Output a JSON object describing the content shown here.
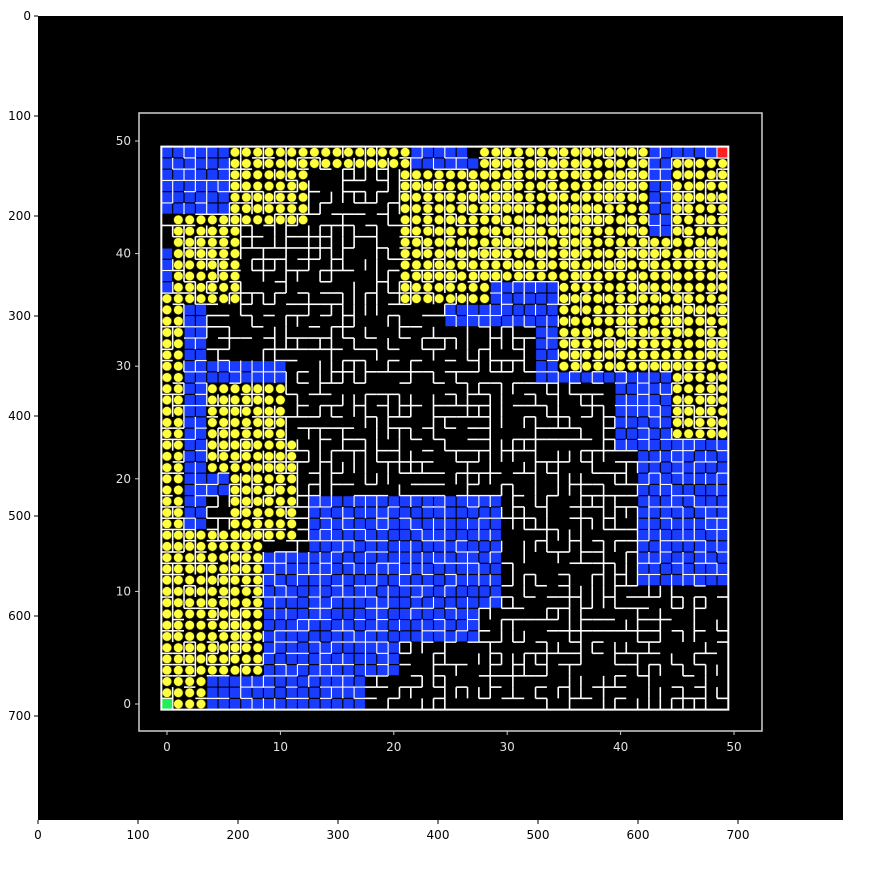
{
  "chart_data": [
    {
      "type": "heatmap",
      "role": "outer-image-axes",
      "title": "",
      "xlabel": "",
      "ylabel": "",
      "xlim": [
        0,
        805
      ],
      "ylim": [
        805,
        0
      ],
      "xticks": [
        0,
        100,
        200,
        300,
        400,
        500,
        600,
        700
      ],
      "yticks": [
        0,
        100,
        200,
        300,
        400,
        500,
        600,
        700
      ],
      "background": "#000000"
    },
    {
      "type": "scatter",
      "role": "maze-search-plot",
      "title": "",
      "xlabel": "",
      "ylabel": "",
      "xlim": [
        -2.5,
        52.5
      ],
      "ylim": [
        -2.5,
        52.5
      ],
      "xticks": [
        0,
        10,
        20,
        30,
        40,
        50
      ],
      "yticks": [
        0,
        10,
        20,
        30,
        40,
        50
      ],
      "grid_size": 50,
      "start": [
        0,
        0
      ],
      "goal": [
        49,
        49
      ],
      "colors": {
        "background": "#000000",
        "frame": "#d0d0d0",
        "walls": "#ffffff",
        "visited": "#1a3cff",
        "frontier": "#ffff3c",
        "start": "#22ee55",
        "goal": "#ff2020"
      },
      "visited_regions": [
        {
          "x0": 0,
          "x1": 9,
          "y0": 44,
          "y1": 49
        },
        {
          "x0": 9,
          "x1": 11,
          "y0": 49,
          "y1": 49
        },
        {
          "x0": 11,
          "x1": 26,
          "y0": 49,
          "y1": 49
        },
        {
          "x0": 21,
          "x1": 31,
          "y0": 44,
          "y1": 48
        },
        {
          "x0": 25,
          "x1": 35,
          "y0": 34,
          "y1": 43
        },
        {
          "x0": 33,
          "x1": 46,
          "y0": 29,
          "y1": 37
        },
        {
          "x0": 41,
          "x1": 49,
          "y0": 40,
          "y1": 49
        },
        {
          "x0": 40,
          "x1": 46,
          "y0": 23,
          "y1": 30
        },
        {
          "x0": 42,
          "x1": 49,
          "y0": 11,
          "y1": 24
        },
        {
          "x0": 0,
          "x1": 3,
          "y0": 2,
          "y1": 40
        },
        {
          "x0": 4,
          "x1": 10,
          "y0": 27,
          "y1": 30
        },
        {
          "x0": 3,
          "x1": 6,
          "y0": 19,
          "y1": 26
        },
        {
          "x0": 0,
          "x1": 17,
          "y0": 0,
          "y1": 4
        },
        {
          "x0": 9,
          "x1": 20,
          "y0": 3,
          "y1": 13
        },
        {
          "x0": 13,
          "x1": 29,
          "y0": 9,
          "y1": 18
        },
        {
          "x0": 20,
          "x1": 27,
          "y0": 6,
          "y1": 11
        }
      ],
      "frontier_regions": [
        {
          "x0": 0,
          "x1": 1,
          "y0": 0,
          "y1": 36
        },
        {
          "x0": 1,
          "x1": 6,
          "y0": 36,
          "y1": 43
        },
        {
          "x0": 6,
          "x1": 12,
          "y0": 43,
          "y1": 49
        },
        {
          "x0": 10,
          "x1": 21,
          "y0": 48,
          "y1": 49
        },
        {
          "x0": 21,
          "x1": 28,
          "y0": 36,
          "y1": 47
        },
        {
          "x0": 28,
          "x1": 42,
          "y0": 38,
          "y1": 49
        },
        {
          "x0": 35,
          "x1": 49,
          "y0": 30,
          "y1": 41
        },
        {
          "x0": 45,
          "x1": 49,
          "y0": 24,
          "y1": 48
        },
        {
          "x0": 4,
          "x1": 10,
          "y0": 21,
          "y1": 28
        },
        {
          "x0": 6,
          "x1": 11,
          "y0": 15,
          "y1": 23
        },
        {
          "x0": 1,
          "x1": 8,
          "y0": 3,
          "y1": 15
        },
        {
          "x0": 0,
          "x1": 3,
          "y0": 0,
          "y1": 2
        }
      ]
    }
  ]
}
